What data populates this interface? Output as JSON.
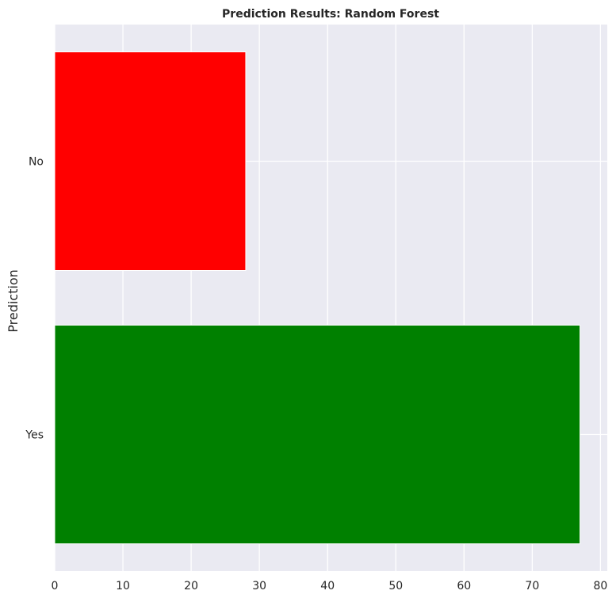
{
  "chart_data": {
    "type": "bar",
    "orientation": "horizontal",
    "title": "Prediction Results: Random Forest",
    "xlabel": "",
    "ylabel": "Prediction",
    "categories": [
      "No",
      "Yes"
    ],
    "values": [
      28,
      77
    ],
    "bar_colors": [
      "#ff0000",
      "#008000"
    ],
    "xlim": [
      0,
      81
    ],
    "xticks": [
      0,
      10,
      20,
      30,
      40,
      50,
      60,
      70,
      80
    ],
    "grid": true,
    "legend": "none",
    "style": {
      "plot_background": "#eaeaf2",
      "grid_color": "#ffffff",
      "text_color": "#262626"
    }
  }
}
